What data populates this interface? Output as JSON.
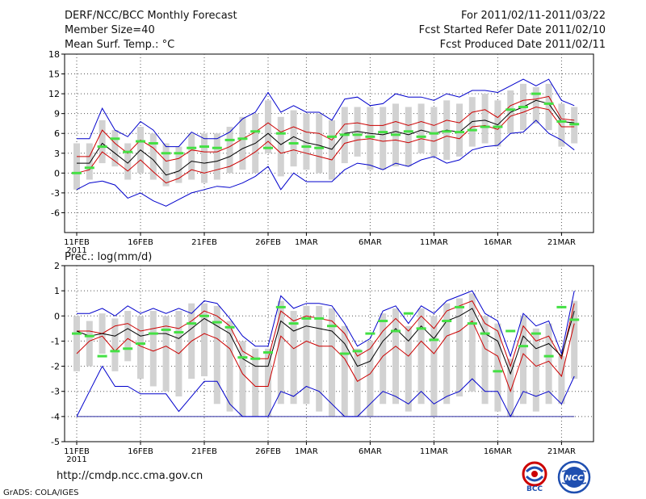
{
  "header": {
    "title": "DERF/NCC/BCC Monthly Forecast",
    "member_size": "Member Size=40",
    "variable": "Mean Surf. Temp.: °C",
    "forecast_range": "For 2011/02/11-2011/03/22",
    "refer_date": "Fcst Started Refer Date 2011/02/10",
    "produced_date": "Fcst Produced Date 2011/02/11"
  },
  "footer": {
    "url": "http://cmdp.ncc.cma.gov.cn",
    "credit": "GrADS: COLA/IGES",
    "logo_left_text": "BCC",
    "logo_right_text": "NCC"
  },
  "colors": {
    "envelope": "#0000cc",
    "spread": "#cc0000",
    "mean": "#000000",
    "obs": "#44e044",
    "box": "#d2d2d2"
  },
  "chart_data": [
    {
      "type": "line",
      "title": "Mean Surf. Temp.: °C",
      "xlabel": "",
      "ylabel": "",
      "ylim": [
        -9,
        18
      ],
      "yticks": [
        -6,
        -3,
        0,
        3,
        6,
        9,
        12,
        15,
        18
      ],
      "xticks": [
        {
          "day": 1,
          "label": "11FEB",
          "sub": "2011"
        },
        {
          "day": 6,
          "label": "16FEB"
        },
        {
          "day": 11,
          "label": "21FEB"
        },
        {
          "day": 16,
          "label": "26FEB"
        },
        {
          "day": 19,
          "label": "1MAR"
        },
        {
          "day": 24,
          "label": "6MAR"
        },
        {
          "day": 29,
          "label": "11MAR"
        },
        {
          "day": 34,
          "label": "16MAR"
        },
        {
          "day": 39,
          "label": "21MAR"
        }
      ],
      "days": [
        1,
        2,
        3,
        4,
        5,
        6,
        7,
        8,
        9,
        10,
        11,
        12,
        13,
        14,
        15,
        16,
        17,
        18,
        19,
        20,
        21,
        22,
        23,
        24,
        25,
        26,
        27,
        28,
        29,
        30,
        31,
        32,
        33,
        34,
        35,
        36,
        37,
        38,
        39,
        40
      ],
      "series": [
        {
          "name": "max",
          "values": [
            5.2,
            5.2,
            9.8,
            6.5,
            5.5,
            7.8,
            6.5,
            4.0,
            4.0,
            6.2,
            5.2,
            5.2,
            6.2,
            8.2,
            9.2,
            12.2,
            9.2,
            10.2,
            9.2,
            9.2,
            8.0,
            11.2,
            11.5,
            10.2,
            10.5,
            12.0,
            11.5,
            11.5,
            11.0,
            12.0,
            11.5,
            12.5,
            12.5,
            12.2,
            13.2,
            14.2,
            13.2,
            14.2,
            11.0,
            10.2
          ]
        },
        {
          "name": "p75",
          "values": [
            2.5,
            2.5,
            6.5,
            4.5,
            3.0,
            5.0,
            3.8,
            1.8,
            2.2,
            3.5,
            3.2,
            3.2,
            4.0,
            5.2,
            6.2,
            7.6,
            6.2,
            7.0,
            6.2,
            6.0,
            5.0,
            7.4,
            7.6,
            7.2,
            7.2,
            7.8,
            7.2,
            7.8,
            7.2,
            8.0,
            7.6,
            9.2,
            9.6,
            8.4,
            10.2,
            11.0,
            11.2,
            11.6,
            8.2,
            8.0
          ]
        },
        {
          "name": "mean",
          "values": [
            1.5,
            1.5,
            4.5,
            3.0,
            1.5,
            3.5,
            2.0,
            -0.3,
            0.3,
            1.8,
            1.5,
            1.8,
            2.5,
            3.7,
            4.5,
            6.0,
            4.3,
            5.5,
            4.6,
            4.2,
            3.6,
            6.0,
            6.3,
            6.0,
            5.8,
            6.3,
            5.8,
            6.5,
            6.0,
            6.5,
            6.2,
            7.8,
            8.0,
            7.3,
            9.2,
            10.0,
            11.0,
            10.5,
            7.8,
            7.6
          ]
        },
        {
          "name": "p25",
          "values": [
            0.0,
            0.5,
            3.2,
            1.8,
            0.3,
            2.0,
            0.2,
            -1.5,
            -0.8,
            0.5,
            0.0,
            0.5,
            1.0,
            2.0,
            3.2,
            4.8,
            3.0,
            3.5,
            3.0,
            2.5,
            2.0,
            4.5,
            5.0,
            5.2,
            4.8,
            5.0,
            4.6,
            5.2,
            4.8,
            5.6,
            5.2,
            7.0,
            7.2,
            6.6,
            8.6,
            9.2,
            10.0,
            9.6,
            7.0,
            7.0
          ]
        },
        {
          "name": "min",
          "values": [
            -2.5,
            -1.5,
            -1.2,
            -1.8,
            -3.8,
            -3.0,
            -4.2,
            -5.0,
            -4.0,
            -3.0,
            -2.5,
            -2.0,
            -2.2,
            -1.5,
            -0.5,
            1.0,
            -2.5,
            0.0,
            -1.3,
            -1.3,
            -1.3,
            0.5,
            1.5,
            1.2,
            0.5,
            1.5,
            1.0,
            2.0,
            2.5,
            1.5,
            2.0,
            3.5,
            4.0,
            4.2,
            6.0,
            6.2,
            8.0,
            6.0,
            5.0,
            3.5
          ]
        },
        {
          "name": "observed",
          "values": [
            0,
            0.8,
            4.0,
            5.2,
            3.2,
            4.8,
            4.5,
            3.0,
            3.0,
            3.8,
            4.0,
            3.8,
            5.0,
            5.2,
            6.3,
            3.8,
            6.0,
            4.5,
            4.0,
            3.8,
            5.5,
            5.8,
            5.8,
            5.5,
            6.2,
            5.8,
            6.3,
            5.5,
            6.0,
            6.3,
            6.2,
            6.5,
            7.0,
            7.0,
            9.6,
            10.0,
            12.0,
            10.5,
            7.8,
            7.4
          ]
        },
        {
          "name": "box_low",
          "values": [
            -2.5,
            -1.0,
            1.5,
            1.0,
            -1.0,
            0.0,
            -1.0,
            -2.0,
            -1.5,
            -1.0,
            -1.5,
            -1.0,
            0.0,
            0.5,
            0.0,
            3.0,
            -0.5,
            1.0,
            0.5,
            0.0,
            -1.0,
            1.5,
            2.5,
            0.5,
            0.5,
            1.0,
            1.0,
            3.0,
            2.5,
            2.0,
            2.5,
            4.0,
            4.5,
            4.0,
            6.0,
            6.5,
            7.5,
            6.5,
            4.0,
            4.5
          ]
        },
        {
          "name": "box_high",
          "values": [
            4.5,
            4.5,
            8.0,
            6.5,
            4.5,
            7.0,
            6.0,
            4.5,
            4.0,
            6.0,
            6.0,
            6.0,
            7.0,
            8.5,
            9.0,
            11.0,
            8.5,
            9.5,
            9.0,
            9.0,
            8.0,
            10.0,
            10.0,
            10.0,
            10.0,
            10.5,
            10.0,
            10.5,
            10.0,
            11.0,
            10.5,
            11.5,
            12.0,
            11.0,
            12.5,
            13.5,
            13.0,
            13.5,
            10.5,
            10.0
          ]
        }
      ]
    },
    {
      "type": "line",
      "title": "Prec.: log(mm/d)",
      "xlabel": "",
      "ylabel": "",
      "ylim": [
        -5,
        2
      ],
      "yticks": [
        -5,
        -4,
        -3,
        -2,
        -1,
        0,
        1,
        2
      ],
      "reference_line": -4,
      "xticks": [
        {
          "day": 1,
          "label": "11FEB",
          "sub": "2011"
        },
        {
          "day": 6,
          "label": "16FEB"
        },
        {
          "day": 11,
          "label": "21FEB"
        },
        {
          "day": 16,
          "label": "26FEB"
        },
        {
          "day": 19,
          "label": "1MAR"
        },
        {
          "day": 24,
          "label": "6MAR"
        },
        {
          "day": 29,
          "label": "11MAR"
        },
        {
          "day": 34,
          "label": "16MAR"
        },
        {
          "day": 39,
          "label": "21MAR"
        }
      ],
      "days": [
        1,
        2,
        3,
        4,
        5,
        6,
        7,
        8,
        9,
        10,
        11,
        12,
        13,
        14,
        15,
        16,
        17,
        18,
        19,
        20,
        21,
        22,
        23,
        24,
        25,
        26,
        27,
        28,
        29,
        30,
        31,
        32,
        33,
        34,
        35,
        36,
        37,
        38,
        39,
        40
      ],
      "series": [
        {
          "name": "max",
          "values": [
            0.1,
            0.1,
            0.3,
            0.0,
            0.4,
            0.1,
            0.3,
            0.1,
            0.3,
            0.1,
            0.6,
            0.5,
            -0.1,
            -0.8,
            -1.2,
            -1.2,
            0.8,
            0.3,
            0.5,
            0.5,
            0.4,
            -0.3,
            -1.2,
            -0.9,
            0.2,
            0.4,
            -0.3,
            0.4,
            0.1,
            0.6,
            0.8,
            1.0,
            0.1,
            -0.2,
            -1.6,
            0.1,
            -0.4,
            -0.2,
            -1.5,
            1.0
          ]
        },
        {
          "name": "p75",
          "values": [
            -0.6,
            -0.6,
            -0.7,
            -0.4,
            -0.3,
            -0.6,
            -0.5,
            -0.4,
            -0.5,
            -0.2,
            0.2,
            0.0,
            -0.4,
            -1.4,
            -1.7,
            -1.7,
            0.2,
            -0.2,
            0.0,
            -0.1,
            -0.2,
            -0.7,
            -1.6,
            -1.3,
            -0.6,
            -0.1,
            -0.6,
            0.0,
            -0.5,
            0.2,
            0.4,
            0.6,
            -0.3,
            -0.6,
            -2.0,
            -0.4,
            -1.0,
            -0.8,
            -1.7,
            0.5
          ]
        },
        {
          "name": "mean",
          "values": [
            -0.6,
            -0.8,
            -0.7,
            -0.8,
            -0.5,
            -0.8,
            -0.7,
            -0.7,
            -0.9,
            -0.5,
            -0.1,
            -0.4,
            -0.7,
            -1.7,
            -2.0,
            -2.0,
            -0.2,
            -0.6,
            -0.4,
            -0.5,
            -0.6,
            -1.1,
            -2.0,
            -1.8,
            -1.0,
            -0.5,
            -1.0,
            -0.4,
            -0.9,
            -0.2,
            0.0,
            0.3,
            -0.7,
            -1.0,
            -2.3,
            -0.8,
            -1.3,
            -1.1,
            -1.6,
            0.2
          ]
        },
        {
          "name": "p25",
          "values": [
            -1.5,
            -1.0,
            -0.8,
            -1.4,
            -0.9,
            -1.2,
            -1.4,
            -1.2,
            -1.5,
            -1.0,
            -0.7,
            -0.9,
            -1.3,
            -2.3,
            -2.8,
            -2.8,
            -0.8,
            -1.3,
            -1.0,
            -1.2,
            -1.2,
            -1.7,
            -2.6,
            -2.3,
            -1.6,
            -1.2,
            -1.6,
            -1.0,
            -1.5,
            -0.8,
            -0.6,
            -0.2,
            -1.3,
            -1.6,
            -3.0,
            -1.5,
            -2.0,
            -1.8,
            -2.4,
            -0.3
          ]
        },
        {
          "name": "min",
          "values": [
            -4.0,
            -3.0,
            -2.0,
            -2.8,
            -2.8,
            -3.1,
            -3.1,
            -3.1,
            -3.8,
            -3.2,
            -2.6,
            -2.6,
            -3.5,
            -4.0,
            -4.0,
            -4.0,
            -3.0,
            -3.2,
            -2.8,
            -3.0,
            -3.5,
            -4.0,
            -4.0,
            -3.5,
            -3.0,
            -3.2,
            -3.5,
            -3.0,
            -3.5,
            -3.2,
            -3.0,
            -2.5,
            -3.0,
            -3.0,
            -4.0,
            -3.0,
            -3.2,
            -3.0,
            -3.5,
            -2.4
          ]
        },
        {
          "name": "observed",
          "values": [
            -0.7,
            -0.8,
            -1.6,
            -1.4,
            -1.3,
            -1.1,
            -0.7,
            -0.55,
            -0.65,
            -0.3,
            0.0,
            -0.25,
            -0.45,
            -1.65,
            -1.7,
            -1.45,
            0.35,
            -0.3,
            -0.1,
            -0.1,
            -0.4,
            -1.5,
            -1.4,
            -0.7,
            -0.2,
            -0.6,
            0.1,
            -0.5,
            -0.95,
            -0.2,
            0.35,
            -0.3,
            -0.7,
            -2.2,
            -0.6,
            -1.2,
            -0.7,
            -1.6,
            0.35,
            -0.15
          ]
        },
        {
          "name": "box_low",
          "values": [
            -2.2,
            -2.0,
            -1.5,
            -2.2,
            -1.8,
            -2.5,
            -2.8,
            -3.0,
            -3.2,
            -2.5,
            -2.4,
            -3.5,
            -3.8,
            -4.0,
            -4.0,
            -4.0,
            -3.5,
            -3.5,
            -3.5,
            -3.8,
            -4.0,
            -4.0,
            -4.0,
            -4.0,
            -3.5,
            -3.5,
            -3.8,
            -3.5,
            -4.0,
            -3.5,
            -3.2,
            -3.0,
            -3.5,
            -3.8,
            -4.0,
            -3.5,
            -3.8,
            -3.5,
            -3.5,
            -2.5
          ]
        },
        {
          "name": "box_high",
          "values": [
            0.0,
            -0.2,
            0.1,
            -0.1,
            0.2,
            0.0,
            0.2,
            0.0,
            0.2,
            0.5,
            0.5,
            0.4,
            -0.2,
            -1.0,
            -1.3,
            -1.3,
            0.6,
            0.2,
            0.4,
            0.4,
            0.3,
            -0.4,
            -1.3,
            -1.0,
            0.1,
            0.3,
            -0.4,
            0.3,
            0.0,
            0.5,
            0.7,
            0.9,
            0.0,
            -0.3,
            -1.7,
            0.0,
            -0.5,
            -0.3,
            -1.6,
            0.6
          ]
        }
      ]
    }
  ]
}
